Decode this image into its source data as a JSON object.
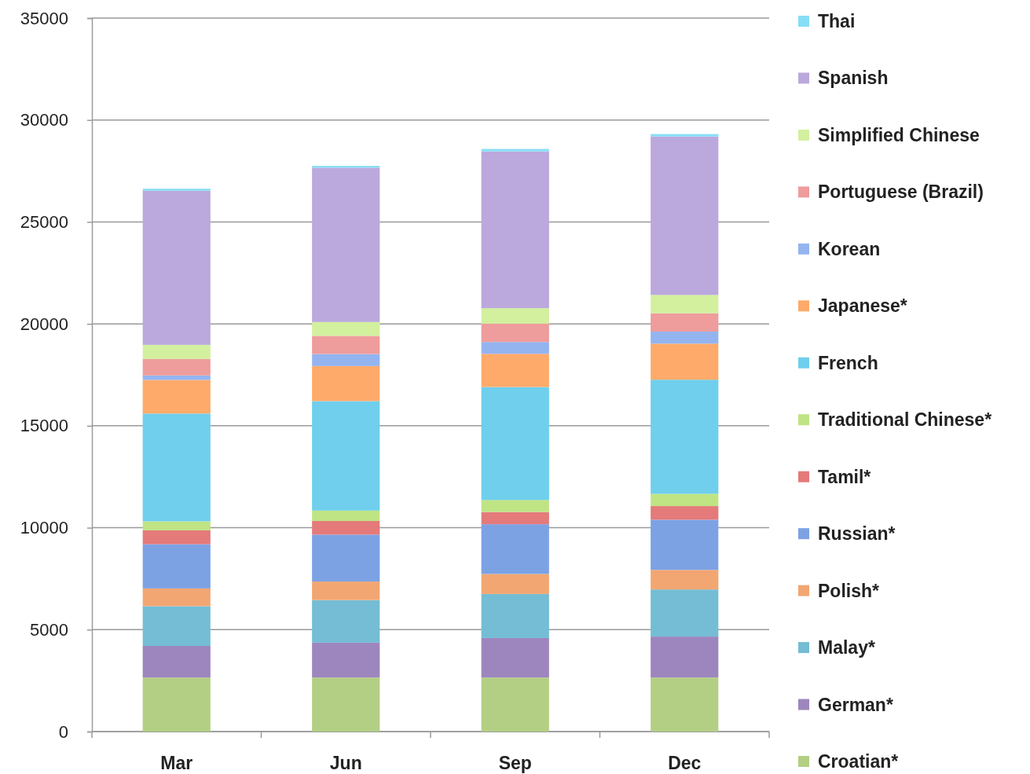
{
  "chart_data": {
    "type": "bar",
    "stacked": true,
    "categories": [
      "Mar",
      "Jun",
      "Sep",
      "Dec"
    ],
    "series": [
      {
        "name": "Croatian*",
        "color": "#b3cf84",
        "values": [
          2650,
          2650,
          2650,
          2650
        ]
      },
      {
        "name": "German*",
        "color": "#9d86bd",
        "values": [
          1550,
          1710,
          1940,
          2010
        ]
      },
      {
        "name": "Malay*",
        "color": "#74bdd4",
        "values": [
          1950,
          2090,
          2160,
          2310
        ]
      },
      {
        "name": "Polish*",
        "color": "#f2a672",
        "values": [
          870,
          910,
          980,
          960
        ]
      },
      {
        "name": "Russian*",
        "color": "#7ca2e4",
        "values": [
          2170,
          2300,
          2440,
          2460
        ]
      },
      {
        "name": "Tamil*",
        "color": "#e47a7a",
        "values": [
          680,
          670,
          600,
          670
        ]
      },
      {
        "name": "Traditional Chinese*",
        "color": "#bfe484",
        "values": [
          440,
          510,
          590,
          600
        ]
      },
      {
        "name": "French",
        "color": "#6fcfec",
        "values": [
          5290,
          5370,
          5540,
          5600
        ]
      },
      {
        "name": "Japanese*",
        "color": "#fdaa6a",
        "values": [
          1650,
          1720,
          1630,
          1770
        ]
      },
      {
        "name": "Korean",
        "color": "#94b4f0",
        "values": [
          220,
          590,
          580,
          590
        ]
      },
      {
        "name": "Portuguese (Brazil)",
        "color": "#ee9c9c",
        "values": [
          810,
          890,
          900,
          900
        ]
      },
      {
        "name": "Simplified Chinese",
        "color": "#d2f09e",
        "values": [
          690,
          680,
          760,
          900
        ]
      },
      {
        "name": "Spanish",
        "color": "#bba8dc",
        "values": [
          7560,
          7570,
          7690,
          7770
        ]
      },
      {
        "name": "Thai",
        "color": "#86def6",
        "values": [
          100,
          90,
          120,
          120
        ]
      }
    ],
    "ylim": [
      0,
      35000
    ],
    "yticks": [
      0,
      5000,
      10000,
      15000,
      20000,
      25000,
      30000,
      35000
    ],
    "grid": "y",
    "legend": "right"
  }
}
